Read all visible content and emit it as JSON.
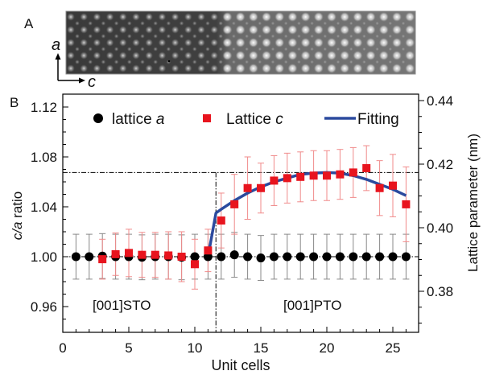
{
  "panel_labels": {
    "a": "A",
    "b": "B"
  },
  "image_panel": {
    "axis_a": "a",
    "axis_c": "c"
  },
  "colors": {
    "lattice_a": "#000000",
    "lattice_c": "#e8141e",
    "fitting": "#2b4a9e",
    "err_a": "#888888",
    "err_c": "#f08a8a"
  },
  "chart_data": {
    "type": "scatter",
    "xlabel": "Unit cells",
    "ylabel_left": "c/a ratio",
    "ylabel_left_parts": {
      "italic": "c/a",
      "rest": " ratio"
    },
    "ylabel_right": "Lattice parameter (nm)",
    "xlim": [
      0,
      27
    ],
    "ylim_left": [
      0.94,
      1.131
    ],
    "ylim_right": [
      0.367,
      0.442
    ],
    "xticks": [
      "0",
      "5",
      "10",
      "15",
      "20",
      "25"
    ],
    "xtick_values": [
      0,
      5,
      10,
      15,
      20,
      25
    ],
    "yticks_left": [
      "0.96",
      "1.00",
      "1.04",
      "1.08",
      "1.12"
    ],
    "ytick_left_values": [
      0.96,
      1.0,
      1.04,
      1.08,
      1.12
    ],
    "yticks_right": [
      "0.38",
      "0.40",
      "0.42",
      "0.44"
    ],
    "ytick_right_values": [
      0.38,
      0.4,
      0.42,
      0.44
    ],
    "legend": {
      "placement": "top",
      "items": [
        {
          "label": "lattice ",
          "italic": "a",
          "marker": "circle"
        },
        {
          "label": "Lattice ",
          "italic": "c",
          "marker": "square"
        },
        {
          "label": "Fitting",
          "italic": "",
          "marker": "line"
        }
      ]
    },
    "annotations": [
      "[001]STO",
      "[001]PTO"
    ],
    "reference_lines": {
      "horizontal": [
        1.0,
        1.0675
      ],
      "vertical": [
        11.6
      ]
    },
    "series": [
      {
        "name": "lattice a",
        "x": [
          1,
          2,
          3,
          4,
          5,
          6,
          7,
          8,
          9,
          10,
          11,
          12,
          13,
          14,
          15,
          16,
          17,
          18,
          19,
          20,
          21,
          22,
          23,
          24,
          25,
          26
        ],
        "y": [
          1.0,
          1.0,
          1.0005,
          1.0,
          1.0,
          0.9995,
          1.0,
          1.0,
          0.9995,
          1.0,
          1.0,
          1.0,
          1.0015,
          1.0,
          0.999,
          1.0,
          1.0,
          1.0,
          1.0,
          1.0,
          1.0,
          1.0,
          1.0,
          1.0,
          1.0,
          1.0
        ],
        "err": [
          0.018,
          0.018,
          0.018,
          0.018,
          0.018,
          0.018,
          0.018,
          0.018,
          0.018,
          0.018,
          0.018,
          0.018,
          0.018,
          0.018,
          0.018,
          0.018,
          0.018,
          0.018,
          0.018,
          0.018,
          0.018,
          0.018,
          0.018,
          0.018,
          0.018,
          0.018
        ]
      },
      {
        "name": "Lattice c",
        "x": [
          3,
          4,
          5,
          6,
          7,
          8,
          9,
          10,
          11,
          12,
          13,
          14,
          15,
          16,
          17,
          18,
          19,
          20,
          21,
          22,
          23,
          24,
          25,
          26
        ],
        "y": [
          0.998,
          1.002,
          1.003,
          1.0015,
          1.0015,
          1.001,
          1.0,
          0.994,
          1.005,
          1.029,
          1.042,
          1.055,
          1.055,
          1.061,
          1.063,
          1.064,
          1.065,
          1.065,
          1.066,
          1.0675,
          1.071,
          1.055,
          1.057,
          1.042
        ],
        "err": [
          0.016,
          0.017,
          0.019,
          0.018,
          0.018,
          0.019,
          0.02,
          0.02,
          0.017,
          0.022,
          0.024,
          0.025,
          0.02,
          0.02,
          0.02,
          0.02,
          0.02,
          0.02,
          0.02,
          0.02,
          0.018,
          0.022,
          0.025,
          0.03
        ]
      },
      {
        "name": "Fitting",
        "x": [
          11,
          11.6,
          12,
          13,
          14,
          15,
          16,
          17,
          18,
          19,
          20,
          21,
          22,
          23,
          24,
          25,
          26
        ],
        "y": [
          1.0,
          1.035,
          1.038,
          1.045,
          1.051,
          1.056,
          1.06,
          1.063,
          1.066,
          1.067,
          1.0675,
          1.067,
          1.065,
          1.062,
          1.058,
          1.054,
          1.049
        ]
      }
    ]
  }
}
